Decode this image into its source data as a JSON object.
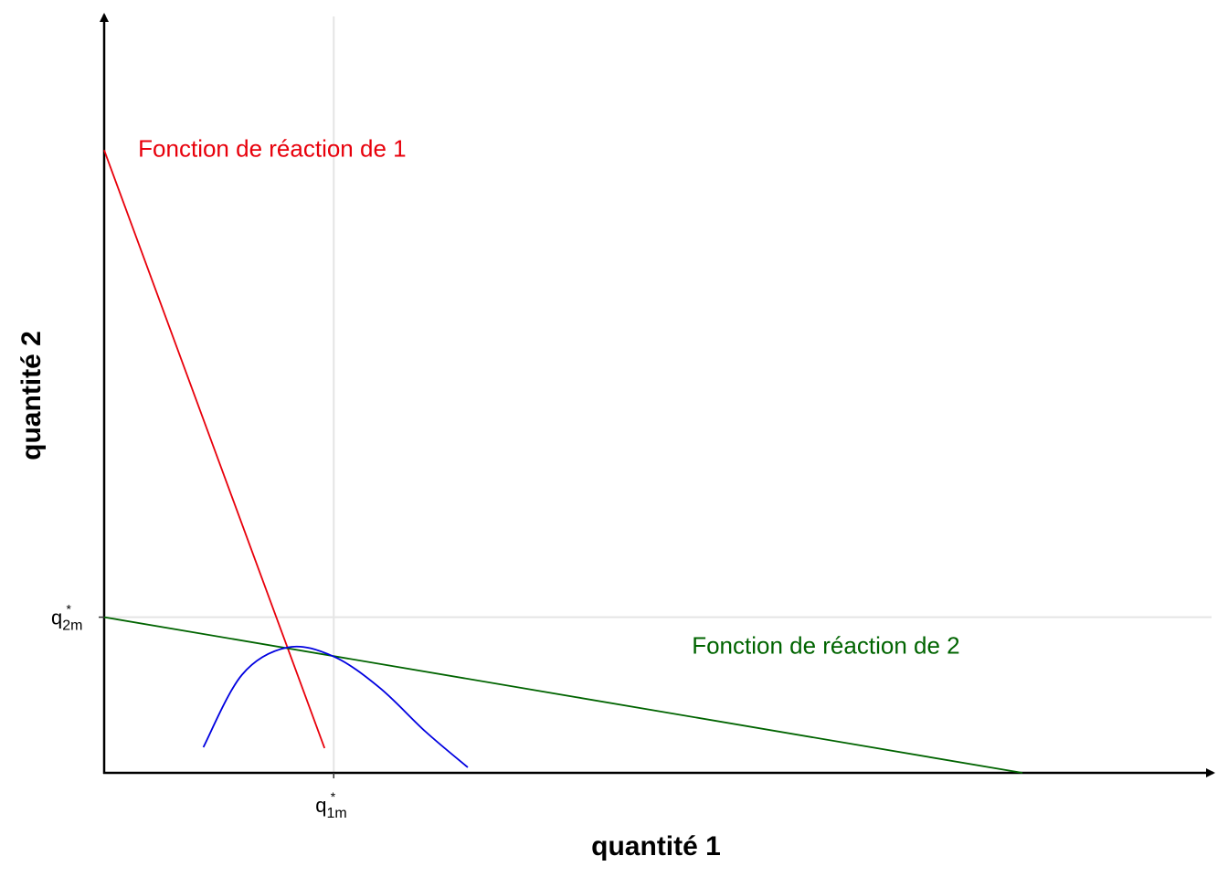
{
  "chart_data": {
    "type": "line",
    "xlabel": "quantité 1",
    "ylabel": "quantité 2",
    "xlim": [
      0,
      12
    ],
    "ylim": [
      0,
      8.2
    ],
    "grid": false,
    "reference_lines": {
      "x": {
        "value": 2.5,
        "tick": {
          "base": "q",
          "sup": "*",
          "sub": "1m"
        }
      },
      "y": {
        "value": 1.7,
        "tick": {
          "base": "q",
          "sup": "*",
          "sub": "2m"
        }
      }
    },
    "series": [
      {
        "name": "Fonction de réaction de 1",
        "color": "#e8000b",
        "x": [
          0,
          2.4
        ],
        "y": [
          6.8,
          0.27
        ]
      },
      {
        "name": "Fonction de réaction de 2",
        "color": "#006400",
        "x": [
          0,
          10
        ],
        "y": [
          1.7,
          0
        ]
      },
      {
        "name": "",
        "color": "#0000e0",
        "x": [
          1.08,
          1.5,
          2.0,
          2.5,
          3.0,
          3.5,
          3.96
        ],
        "y": [
          0.28,
          1.07,
          1.37,
          1.27,
          0.93,
          0.45,
          0.06
        ]
      }
    ],
    "annotations": [
      {
        "text": "Fonction de réaction de 1",
        "color": "#e8000b",
        "x": 0.37,
        "y": 6.73
      },
      {
        "text": "Fonction de réaction de 2",
        "color": "#006400",
        "x": 6.4,
        "y": 1.3
      }
    ]
  }
}
